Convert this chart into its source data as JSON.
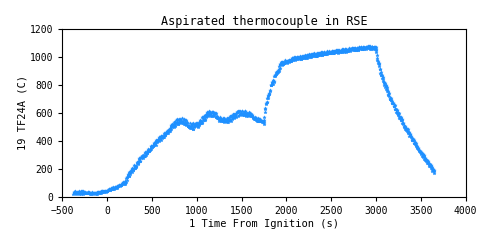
{
  "title": "Aspirated thermocouple in RSE",
  "xlabel": "1 Time From Ignition (s)",
  "ylabel": "19 TF24A (C)",
  "xlim": [
    -500,
    4000
  ],
  "ylim": [
    0,
    1200
  ],
  "xticks": [
    -500,
    0,
    500,
    1000,
    1500,
    2000,
    2500,
    3000,
    3500,
    4000
  ],
  "yticks": [
    0,
    200,
    400,
    600,
    800,
    1000,
    1200
  ],
  "marker_color": "#1E90FF",
  "marker_size": 2.5,
  "bg_color": "#ffffff"
}
